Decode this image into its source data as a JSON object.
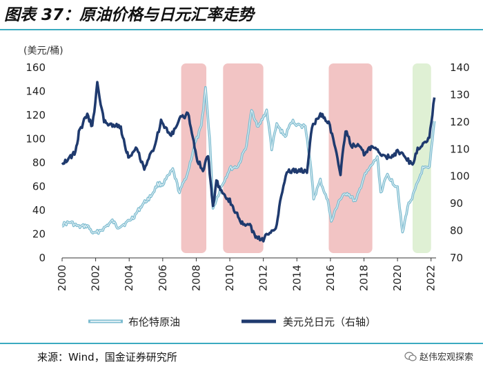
{
  "header": {
    "title": "图表 37：原油价格与日元汇率走势"
  },
  "footer": {
    "source": "来源：Wind，国金证券研究所",
    "brand": "赵伟宏观探索"
  },
  "colors": {
    "oil": "#7dbcd0",
    "usdjpy": "#1f3a6e",
    "shade_red": "#f2c4c4",
    "shade_green": "#dff0d4",
    "rule": "#3aaac0"
  },
  "chart_data": {
    "type": "line",
    "unit_label": "(美元/桶)",
    "left_axis": {
      "min": 0,
      "max": 160,
      "ticks": [
        0,
        20,
        40,
        60,
        80,
        100,
        120,
        140,
        160
      ]
    },
    "right_axis": {
      "min": 70,
      "max": 140,
      "ticks": [
        70,
        80,
        90,
        100,
        110,
        120,
        130,
        140
      ]
    },
    "x_axis": {
      "min": 2000,
      "max": 2022.3,
      "ticks": [
        2000,
        2002,
        2004,
        2006,
        2008,
        2010,
        2012,
        2014,
        2016,
        2018,
        2020,
        2022
      ]
    },
    "shaded_regions": [
      {
        "from": 2007.1,
        "to": 2008.6,
        "color": "red"
      },
      {
        "from": 2009.6,
        "to": 2012.0,
        "color": "red"
      },
      {
        "from": 2015.9,
        "to": 2018.5,
        "color": "red"
      },
      {
        "from": 2020.9,
        "to": 2022.0,
        "color": "green"
      }
    ],
    "series": [
      {
        "name": "布伦特原油",
        "axis": "left",
        "points": [
          [
            2000.0,
            28
          ],
          [
            2000.5,
            30
          ],
          [
            2001.0,
            26
          ],
          [
            2001.5,
            27
          ],
          [
            2001.9,
            20
          ],
          [
            2002.5,
            25
          ],
          [
            2003.0,
            31
          ],
          [
            2003.3,
            26
          ],
          [
            2003.8,
            29
          ],
          [
            2004.3,
            35
          ],
          [
            2004.8,
            45
          ],
          [
            2005.3,
            52
          ],
          [
            2005.7,
            62
          ],
          [
            2006.0,
            62
          ],
          [
            2006.6,
            74
          ],
          [
            2007.0,
            55
          ],
          [
            2007.5,
            72
          ],
          [
            2007.9,
            95
          ],
          [
            2008.3,
            110
          ],
          [
            2008.55,
            143
          ],
          [
            2008.8,
            100
          ],
          [
            2009.0,
            42
          ],
          [
            2009.5,
            60
          ],
          [
            2010.0,
            75
          ],
          [
            2010.5,
            77
          ],
          [
            2011.0,
            95
          ],
          [
            2011.3,
            124
          ],
          [
            2011.7,
            110
          ],
          [
            2012.2,
            124
          ],
          [
            2012.5,
            92
          ],
          [
            2012.8,
            112
          ],
          [
            2013.3,
            102
          ],
          [
            2013.7,
            115
          ],
          [
            2014.3,
            110
          ],
          [
            2014.5,
            112
          ],
          [
            2014.8,
            80
          ],
          [
            2015.0,
            50
          ],
          [
            2015.4,
            65
          ],
          [
            2015.9,
            45
          ],
          [
            2016.05,
            30
          ],
          [
            2016.5,
            48
          ],
          [
            2017.0,
            55
          ],
          [
            2017.5,
            47
          ],
          [
            2018.0,
            68
          ],
          [
            2018.8,
            85
          ],
          [
            2019.0,
            55
          ],
          [
            2019.4,
            70
          ],
          [
            2019.8,
            62
          ],
          [
            2020.0,
            60
          ],
          [
            2020.3,
            20
          ],
          [
            2020.6,
            43
          ],
          [
            2021.0,
            55
          ],
          [
            2021.5,
            75
          ],
          [
            2021.9,
            75
          ],
          [
            2022.2,
            115
          ]
        ]
      },
      {
        "name": "美元兑日元（右轴）",
        "axis": "right",
        "points": [
          [
            2000.0,
            105
          ],
          [
            2000.5,
            107
          ],
          [
            2000.8,
            109
          ],
          [
            2001.0,
            116
          ],
          [
            2001.5,
            123
          ],
          [
            2001.8,
            118
          ],
          [
            2002.1,
            134
          ],
          [
            2002.5,
            120
          ],
          [
            2003.0,
            119
          ],
          [
            2003.5,
            118
          ],
          [
            2003.8,
            110
          ],
          [
            2004.0,
            107
          ],
          [
            2004.4,
            111
          ],
          [
            2004.9,
            103
          ],
          [
            2005.5,
            111
          ],
          [
            2005.9,
            120
          ],
          [
            2006.5,
            115
          ],
          [
            2007.0,
            121
          ],
          [
            2007.5,
            123
          ],
          [
            2007.8,
            115
          ],
          [
            2008.0,
            107
          ],
          [
            2008.4,
            102
          ],
          [
            2008.7,
            108
          ],
          [
            2008.9,
            95
          ],
          [
            2009.0,
            89
          ],
          [
            2009.2,
            98
          ],
          [
            2009.5,
            95
          ],
          [
            2010.0,
            91
          ],
          [
            2010.5,
            85
          ],
          [
            2010.8,
            82
          ],
          [
            2011.2,
            82
          ],
          [
            2011.6,
            77
          ],
          [
            2012.0,
            77
          ],
          [
            2012.5,
            80
          ],
          [
            2012.8,
            82
          ],
          [
            2013.0,
            91
          ],
          [
            2013.4,
            102
          ],
          [
            2014.0,
            102
          ],
          [
            2014.6,
            102
          ],
          [
            2014.9,
            118
          ],
          [
            2015.4,
            123
          ],
          [
            2015.9,
            120
          ],
          [
            2016.3,
            110
          ],
          [
            2016.6,
            101
          ],
          [
            2016.9,
            117
          ],
          [
            2017.3,
            111
          ],
          [
            2017.7,
            112
          ],
          [
            2018.0,
            108
          ],
          [
            2018.5,
            111
          ],
          [
            2019.0,
            108
          ],
          [
            2019.5,
            107
          ],
          [
            2020.0,
            109
          ],
          [
            2020.5,
            107
          ],
          [
            2020.9,
            104
          ],
          [
            2021.2,
            110
          ],
          [
            2021.9,
            114
          ],
          [
            2022.2,
            129
          ]
        ]
      }
    ],
    "legend": {
      "position": "bottom",
      "entries": [
        "布伦特原油",
        "美元兑日元（右轴）"
      ]
    }
  }
}
